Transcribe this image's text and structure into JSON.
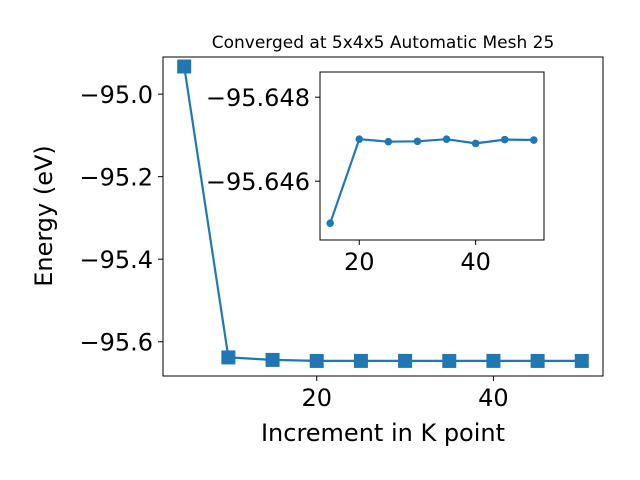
{
  "chart_data": [
    {
      "type": "line",
      "title": "Converged at 5x4x5 Automatic Mesh 25",
      "xlabel": "Increment in K point",
      "ylabel": "Energy (eV)",
      "xlim": [
        2.6,
        52.4
      ],
      "ylim": [
        -95.683,
        -94.91
      ],
      "xticks": [
        20,
        40
      ],
      "yticks": [
        -95.0,
        -95.2,
        -95.4,
        -95.6
      ],
      "xtick_labels": [
        "20",
        "40"
      ],
      "ytick_labels": [
        "−95.0",
        "−95.2",
        "−95.4",
        "−95.6"
      ],
      "marker": "square",
      "color": "#1f77b4",
      "grid": false,
      "series": [
        {
          "x": [
            5,
            10,
            15,
            20,
            25,
            30,
            35,
            40,
            45,
            50
          ],
          "y": [
            -94.933,
            -95.638,
            -95.644,
            -95.6465,
            -95.6464,
            -95.6464,
            -95.6465,
            -95.6464,
            -95.6465,
            -95.6465
          ]
        }
      ]
    },
    {
      "type": "line",
      "title": "",
      "xlabel": "",
      "ylabel": "",
      "inset": true,
      "xlim": [
        13.25,
        51.75
      ],
      "ylim": [
        -95.6446,
        -95.6486
      ],
      "xticks": [
        20,
        40
      ],
      "yticks": [
        -95.648,
        -95.646
      ],
      "xtick_labels": [
        "20",
        "40"
      ],
      "ytick_labels": [
        "−95.648",
        "−95.646"
      ],
      "marker": "circle",
      "color": "#1f77b4",
      "grid": false,
      "series": [
        {
          "x": [
            15,
            20,
            25,
            30,
            35,
            40,
            45,
            50
          ],
          "y": [
            -95.645,
            -95.647,
            -95.64694,
            -95.64695,
            -95.647,
            -95.6469,
            -95.64699,
            -95.64698
          ]
        }
      ]
    }
  ]
}
